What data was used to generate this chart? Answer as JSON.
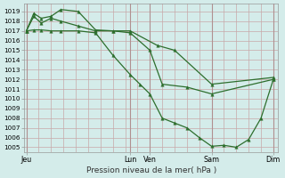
{
  "xlabel": "Pression niveau de la mer( hPa )",
  "background_color": "#d4ecea",
  "grid_color": "#c8a8a8",
  "line_color": "#2d6e2d",
  "ylim": [
    1004.5,
    1019.8
  ],
  "yticks": [
    1005,
    1006,
    1007,
    1008,
    1009,
    1010,
    1011,
    1012,
    1013,
    1014,
    1015,
    1016,
    1017,
    1018,
    1019
  ],
  "xtick_labels": [
    "Jeu",
    "Lun",
    "Ven",
    "Sam",
    "Dim"
  ],
  "xtick_positions": [
    0.0,
    0.42,
    0.5,
    0.75,
    1.0
  ],
  "vline_positions": [
    0.0,
    0.42,
    0.5,
    0.75,
    1.0
  ],
  "line1_x": [
    0.0,
    0.03,
    0.06,
    0.1,
    0.14,
    0.21,
    0.28,
    0.35,
    0.42,
    0.53,
    0.6,
    0.75,
    1.0
  ],
  "line1_y": [
    1017.0,
    1018.8,
    1018.3,
    1018.5,
    1019.2,
    1019.0,
    1017.1,
    1017.0,
    1017.0,
    1015.5,
    1015.0,
    1011.5,
    1012.2
  ],
  "line2_x": [
    0.0,
    0.03,
    0.06,
    0.1,
    0.14,
    0.21,
    0.28,
    0.35,
    0.42,
    0.5,
    0.55,
    0.65,
    0.75,
    1.0
  ],
  "line2_y": [
    1017.0,
    1018.5,
    1017.8,
    1018.3,
    1018.0,
    1017.5,
    1017.0,
    1017.0,
    1016.8,
    1015.0,
    1011.5,
    1011.2,
    1010.5,
    1012.0
  ],
  "line3_x": [
    0.0,
    0.03,
    0.06,
    0.1,
    0.14,
    0.21,
    0.28,
    0.35,
    0.42,
    0.46,
    0.5,
    0.55,
    0.6,
    0.65,
    0.7,
    0.75,
    0.8,
    0.85,
    0.9,
    0.95,
    1.0
  ],
  "line3_y": [
    1017.0,
    1017.1,
    1017.1,
    1017.0,
    1017.0,
    1017.0,
    1016.8,
    1014.5,
    1012.5,
    1011.5,
    1010.5,
    1008.0,
    1007.5,
    1007.0,
    1006.0,
    1005.1,
    1005.2,
    1005.0,
    1005.8,
    1008.0,
    1012.0
  ]
}
